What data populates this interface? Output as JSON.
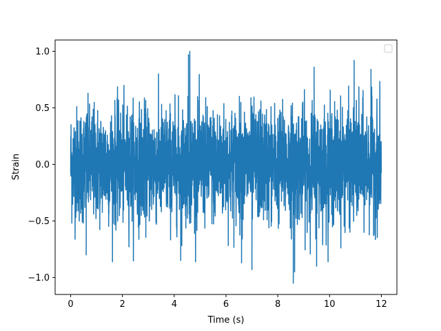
{
  "chart_data": {
    "type": "line",
    "title": "",
    "xlabel": "Time (s)",
    "ylabel": "Strain",
    "xlim": [
      -0.6,
      12.6
    ],
    "ylim": [
      -1.15,
      1.1
    ],
    "xticks": [
      0,
      2,
      4,
      6,
      8,
      10,
      12
    ],
    "xtick_labels": [
      "0",
      "2",
      "4",
      "6",
      "8",
      "10",
      "12"
    ],
    "yticks": [
      -1.0,
      -0.5,
      0.0,
      0.5,
      1.0
    ],
    "ytick_labels": [
      "−1.0",
      "−0.5",
      "0.0",
      "0.5",
      "1.0"
    ],
    "grid": false,
    "legend": {
      "position": "top-right",
      "entries": []
    },
    "series": [
      {
        "color": "#1f77b4",
        "x_range": [
          0,
          12
        ],
        "value_range": [
          -1.05,
          1.0
        ],
        "typical_amplitude": 0.35,
        "peaks": [
          {
            "x": 4.6,
            "y": 1.0
          },
          {
            "x": 4.55,
            "y": 0.97
          },
          {
            "x": 10.95,
            "y": 0.92
          },
          {
            "x": 9.4,
            "y": 0.86
          },
          {
            "x": 11.6,
            "y": 0.84
          },
          {
            "x": 8.6,
            "y": -1.05
          },
          {
            "x": 8.65,
            "y": -0.95
          },
          {
            "x": 7.0,
            "y": -0.93
          },
          {
            "x": 9.5,
            "y": -0.9
          },
          {
            "x": 6.6,
            "y": -0.87
          },
          {
            "x": 4.25,
            "y": -0.85
          },
          {
            "x": 0.6,
            "y": -0.8
          }
        ]
      }
    ]
  }
}
